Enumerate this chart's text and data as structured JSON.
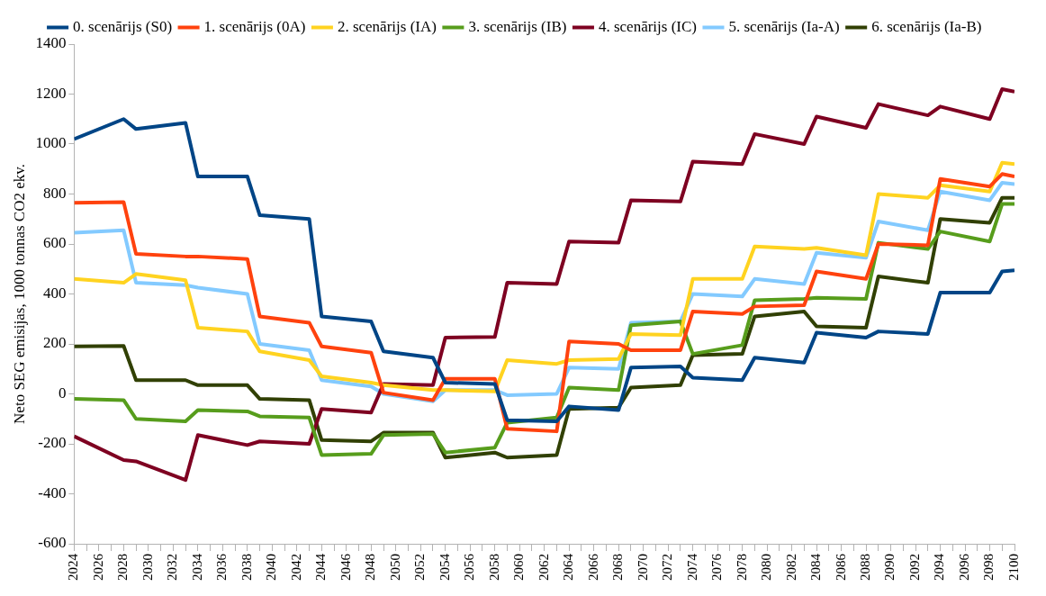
{
  "chart_data": {
    "type": "line",
    "ylabel": "Neto SEG emisijas, 1000 tonnas CO2 ekv.",
    "x": [
      2024,
      2028,
      2029,
      2033,
      2034,
      2038,
      2039,
      2043,
      2044,
      2048,
      2049,
      2053,
      2054,
      2058,
      2059,
      2063,
      2064,
      2068,
      2069,
      2073,
      2074,
      2078,
      2079,
      2083,
      2084,
      2088,
      2089,
      2093,
      2094,
      2098,
      2099,
      2100
    ],
    "xlim": [
      2024,
      2100
    ],
    "xticks": [
      2024,
      {
        "value": 2025,
        "label": null
      },
      2026,
      {
        "value": 2027,
        "label": null
      },
      2028,
      {
        "value": 2029,
        "label": null
      },
      2030,
      {
        "value": 2031,
        "label": null
      },
      2032,
      {
        "value": 2033,
        "label": null
      },
      2034,
      {
        "value": 2035,
        "label": null
      },
      2036,
      {
        "value": 2037,
        "label": null
      },
      2038,
      {
        "value": 2039,
        "label": null
      },
      2040,
      {
        "value": 2041,
        "label": null
      },
      2042,
      {
        "value": 2043,
        "label": null
      },
      2044,
      {
        "value": 2045,
        "label": null
      },
      2046,
      {
        "value": 2047,
        "label": null
      },
      2048,
      {
        "value": 2049,
        "label": null
      },
      2050,
      {
        "value": 2051,
        "label": null
      },
      2052,
      {
        "value": 2053,
        "label": null
      },
      2054,
      {
        "value": 2055,
        "label": null
      },
      2056,
      {
        "value": 2057,
        "label": null
      },
      2058,
      {
        "value": 2059,
        "label": null
      },
      2060,
      {
        "value": 2061,
        "label": null
      },
      2062,
      {
        "value": 2063,
        "label": null
      },
      2064,
      {
        "value": 2065,
        "label": null
      },
      2066,
      {
        "value": 2067,
        "label": null
      },
      2068,
      {
        "value": 2069,
        "label": null
      },
      2070,
      {
        "value": 2071,
        "label": null
      },
      2072,
      {
        "value": 2073,
        "label": null
      },
      2074,
      {
        "value": 2075,
        "label": null
      },
      2076,
      {
        "value": 2077,
        "label": null
      },
      2078,
      {
        "value": 2079,
        "label": null
      },
      2080,
      {
        "value": 2081,
        "label": null
      },
      2082,
      {
        "value": 2083,
        "label": null
      },
      2084,
      {
        "value": 2085,
        "label": null
      },
      2086,
      {
        "value": 2087,
        "label": null
      },
      2088,
      {
        "value": 2089,
        "label": null
      },
      2090,
      {
        "value": 2091,
        "label": null
      },
      2092,
      {
        "value": 2093,
        "label": null
      },
      2094,
      {
        "value": 2095,
        "label": null
      },
      2096,
      {
        "value": 2097,
        "label": null
      },
      2098,
      {
        "value": 2099,
        "label": null
      },
      2100
    ],
    "ylim": [
      -600,
      1400
    ],
    "yticks": [
      -600,
      -400,
      -200,
      0,
      200,
      400,
      600,
      800,
      1000,
      1200,
      1400
    ],
    "grid": false,
    "legend": "top",
    "marker": "none",
    "line_style": "solid",
    "series": [
      {
        "name": "0. scenārijs (S0)",
        "color": "#004586",
        "values": [
          1020,
          1100,
          1060,
          1085,
          870,
          870,
          715,
          700,
          310,
          290,
          170,
          145,
          45,
          40,
          -105,
          -110,
          -50,
          -65,
          105,
          110,
          65,
          55,
          145,
          125,
          245,
          225,
          250,
          240,
          405,
          405,
          490,
          495
        ]
      },
      {
        "name": "1. scenārijs (0A)",
        "color": "#ff420e",
        "values": [
          765,
          768,
          560,
          550,
          550,
          540,
          310,
          285,
          190,
          165,
          5,
          -25,
          60,
          60,
          -140,
          -150,
          210,
          200,
          175,
          175,
          330,
          320,
          350,
          355,
          490,
          460,
          600,
          595,
          860,
          830,
          880,
          870
        ]
      },
      {
        "name": "2. scenārijs (IA)",
        "color": "#ffd320",
        "values": [
          460,
          445,
          480,
          455,
          265,
          250,
          170,
          135,
          70,
          45,
          35,
          15,
          15,
          10,
          135,
          120,
          135,
          140,
          240,
          235,
          460,
          460,
          590,
          580,
          585,
          555,
          800,
          785,
          835,
          810,
          925,
          920
        ]
      },
      {
        "name": "3. scenārijs (IB)",
        "color": "#579d1c",
        "values": [
          -20,
          -25,
          -100,
          -110,
          -65,
          -70,
          -90,
          -95,
          -245,
          -240,
          -165,
          -160,
          -235,
          -215,
          -115,
          -95,
          25,
          15,
          275,
          290,
          160,
          195,
          375,
          380,
          385,
          380,
          605,
          580,
          650,
          610,
          760,
          760
        ]
      },
      {
        "name": "4. scenārijs (IC)",
        "color": "#7e0021",
        "values": [
          -170,
          -265,
          -270,
          -345,
          -165,
          -205,
          -190,
          -200,
          -60,
          -75,
          40,
          35,
          225,
          228,
          445,
          440,
          610,
          605,
          775,
          770,
          930,
          920,
          1040,
          1000,
          1110,
          1065,
          1160,
          1115,
          1150,
          1100,
          1220,
          1210
        ]
      },
      {
        "name": "5. scenārijs (Ia-A)",
        "color": "#83caff",
        "values": [
          645,
          655,
          445,
          435,
          425,
          400,
          200,
          175,
          55,
          30,
          0,
          -30,
          15,
          15,
          -5,
          0,
          105,
          100,
          285,
          290,
          400,
          390,
          460,
          440,
          565,
          545,
          690,
          655,
          810,
          775,
          845,
          840
        ]
      },
      {
        "name": "6. scenārijs (Ia-B)",
        "color": "#314004",
        "values": [
          190,
          192,
          55,
          55,
          35,
          35,
          -20,
          -25,
          -185,
          -190,
          -155,
          -155,
          -255,
          -235,
          -255,
          -245,
          -60,
          -55,
          25,
          35,
          155,
          160,
          310,
          330,
          270,
          265,
          470,
          445,
          700,
          685,
          785,
          785
        ]
      }
    ]
  }
}
